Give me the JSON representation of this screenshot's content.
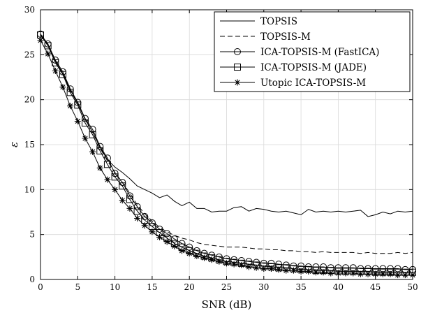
{
  "chart_data": {
    "type": "line",
    "title": "",
    "xlabel": "SNR (dB)",
    "ylabel": "ε",
    "xlim": [
      0,
      50
    ],
    "ylim": [
      0,
      30
    ],
    "xticks": [
      0,
      5,
      10,
      15,
      20,
      25,
      30,
      35,
      40,
      45,
      50
    ],
    "yticks": [
      0,
      5,
      10,
      15,
      20,
      25,
      30
    ],
    "grid": true,
    "legend_position": "top-right",
    "x": [
      0,
      1,
      2,
      3,
      4,
      5,
      6,
      7,
      8,
      9,
      10,
      11,
      12,
      13,
      14,
      15,
      16,
      17,
      18,
      19,
      20,
      21,
      22,
      23,
      24,
      25,
      26,
      27,
      28,
      29,
      30,
      31,
      32,
      33,
      34,
      35,
      36,
      37,
      38,
      39,
      40,
      41,
      42,
      43,
      44,
      45,
      46,
      47,
      48,
      49,
      50
    ],
    "series": [
      {
        "name": "TOPSIS",
        "style": "solid",
        "marker": "none",
        "values": [
          27.3,
          26.0,
          24.3,
          22.9,
          21.1,
          19.6,
          17.8,
          16.4,
          14.7,
          13.3,
          12.5,
          11.9,
          11.2,
          10.4,
          10.0,
          9.6,
          9.1,
          9.4,
          8.7,
          8.2,
          8.6,
          7.9,
          7.9,
          7.5,
          7.6,
          7.6,
          8.0,
          8.1,
          7.6,
          7.9,
          7.8,
          7.6,
          7.5,
          7.6,
          7.4,
          7.2,
          7.8,
          7.5,
          7.6,
          7.5,
          7.6,
          7.5,
          7.6,
          7.7,
          7.0,
          7.2,
          7.5,
          7.3,
          7.6,
          7.5,
          7.6
        ]
      },
      {
        "name": "TOPSIS-M",
        "style": "dashed",
        "marker": "none",
        "values": [
          27.3,
          26.1,
          24.3,
          22.9,
          21.0,
          19.6,
          17.8,
          16.4,
          14.6,
          13.2,
          11.9,
          10.8,
          9.6,
          8.3,
          7.3,
          6.5,
          5.8,
          5.3,
          4.9,
          4.6,
          4.4,
          4.1,
          3.9,
          3.8,
          3.7,
          3.6,
          3.6,
          3.6,
          3.5,
          3.4,
          3.4,
          3.3,
          3.3,
          3.2,
          3.2,
          3.1,
          3.1,
          3.0,
          3.1,
          3.0,
          3.0,
          3.0,
          3.0,
          2.9,
          3.0,
          2.9,
          2.9,
          2.9,
          3.0,
          2.9,
          3.0
        ]
      },
      {
        "name": "ICA-TOPSIS-M (FastICA)",
        "style": "solid",
        "marker": "circle",
        "values": [
          27.3,
          26.2,
          24.4,
          23.1,
          21.2,
          19.7,
          17.9,
          16.7,
          14.8,
          13.5,
          11.8,
          10.8,
          9.3,
          8.1,
          7.0,
          6.3,
          5.6,
          5.1,
          4.5,
          4.0,
          3.6,
          3.2,
          2.9,
          2.7,
          2.5,
          2.3,
          2.2,
          2.1,
          2.0,
          1.9,
          1.8,
          1.8,
          1.7,
          1.6,
          1.5,
          1.5,
          1.4,
          1.4,
          1.4,
          1.3,
          1.3,
          1.3,
          1.3,
          1.2,
          1.2,
          1.2,
          1.2,
          1.2,
          1.2,
          1.1,
          1.1
        ]
      },
      {
        "name": "ICA-TOPSIS-M (JADE)",
        "style": "solid",
        "marker": "square",
        "values": [
          27.2,
          26.0,
          24.1,
          22.8,
          20.8,
          19.4,
          17.4,
          16.1,
          14.3,
          12.8,
          11.4,
          10.4,
          8.9,
          7.6,
          6.6,
          5.9,
          5.2,
          4.6,
          4.0,
          3.6,
          3.2,
          2.9,
          2.6,
          2.4,
          2.2,
          2.0,
          1.9,
          1.8,
          1.7,
          1.6,
          1.5,
          1.4,
          1.3,
          1.3,
          1.2,
          1.1,
          1.1,
          1.0,
          1.0,
          1.0,
          0.9,
          0.9,
          0.9,
          0.9,
          0.9,
          0.8,
          0.8,
          0.8,
          0.8,
          0.8,
          0.8
        ]
      },
      {
        "name": "Utopic ICA-TOPSIS-M",
        "style": "solid",
        "marker": "asterisk",
        "values": [
          26.6,
          25.1,
          23.2,
          21.4,
          19.3,
          17.6,
          15.7,
          14.2,
          12.4,
          11.1,
          10.0,
          8.8,
          7.9,
          6.8,
          6.0,
          5.3,
          4.7,
          4.2,
          3.7,
          3.2,
          2.9,
          2.6,
          2.4,
          2.2,
          2.0,
          1.8,
          1.7,
          1.6,
          1.4,
          1.3,
          1.2,
          1.2,
          1.1,
          1.0,
          1.0,
          0.9,
          0.9,
          0.8,
          0.8,
          0.7,
          0.7,
          0.7,
          0.7,
          0.6,
          0.6,
          0.6,
          0.6,
          0.6,
          0.5,
          0.5,
          0.5
        ]
      }
    ]
  }
}
